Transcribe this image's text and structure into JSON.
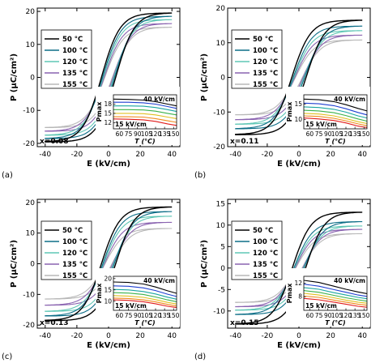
{
  "figure": {
    "description_free": true
  },
  "chart_data": [
    {
      "type": "line",
      "panel_label": "(a)",
      "composition": "x=0.08",
      "xlabel": "E (kV/cm)",
      "ylabel": "P (μC/cm²)",
      "xlim": [
        -45,
        45
      ],
      "ylim": [
        -21,
        21
      ],
      "xticks": [
        -40,
        -20,
        0,
        20,
        40
      ],
      "yticks": [
        -20,
        -10,
        0,
        10,
        20
      ],
      "legend_position": "top-left",
      "series": [
        {
          "name": "50 °C",
          "color": "#000000",
          "values": {
            "Pmax": 19.5,
            "Pr": 9.0,
            "Ec": 4.5
          }
        },
        {
          "name": "100 °C",
          "color": "#0d6e87",
          "values": {
            "Pmax": 18.5,
            "Pr": 5.8,
            "Ec": 3.8
          }
        },
        {
          "name": "120 °C",
          "color": "#5fc7b5",
          "values": {
            "Pmax": 17.5,
            "Pr": 4.6,
            "Ec": 3.3
          }
        },
        {
          "name": "135 °C",
          "color": "#8a63b0",
          "values": {
            "Pmax": 16.3,
            "Pr": 3.5,
            "Ec": 2.8
          }
        },
        {
          "name": "155 °C",
          "color": "#b8b8b8",
          "values": {
            "Pmax": 15.2,
            "Pr": 2.7,
            "Ec": 2.4
          }
        }
      ],
      "inset": {
        "type": "line",
        "xlabel": "T (°C)",
        "ylabel": "Pmax",
        "xlim": [
          50,
          155
        ],
        "ylim": [
          10,
          21
        ],
        "xticks": [
          60,
          75,
          90,
          105,
          120,
          135,
          150
        ],
        "yticks": [
          12,
          15,
          18
        ],
        "top_annotation": "40 kV/cm",
        "bottom_annotation": "15 kV/cm",
        "x": [
          50,
          75,
          100,
          120,
          140,
          155
        ],
        "curves": [
          {
            "color": "#000000",
            "values": [
              19.6,
              19.5,
              19.3,
              18.8,
              18.0,
              17.4
            ]
          },
          {
            "color": "#1f3fd0",
            "values": [
              18.6,
              18.6,
              18.4,
              18.0,
              17.2,
              16.6
            ]
          },
          {
            "color": "#1aa6a0",
            "values": [
              17.4,
              17.4,
              17.3,
              16.9,
              16.2,
              15.6
            ]
          },
          {
            "color": "#3bb24a",
            "values": [
              16.2,
              16.2,
              16.1,
              15.7,
              15.0,
              14.5
            ]
          },
          {
            "color": "#e0c020",
            "values": [
              15.0,
              15.0,
              14.9,
              14.5,
              13.8,
              13.3
            ]
          },
          {
            "color": "#f08a1c",
            "values": [
              13.9,
              13.9,
              13.8,
              13.3,
              12.6,
              12.1
            ]
          },
          {
            "color": "#e01b1b",
            "values": [
              13.2,
              13.1,
              12.9,
              12.4,
              11.6,
              11.1
            ]
          }
        ]
      }
    },
    {
      "type": "line",
      "panel_label": "(b)",
      "composition": "x=0.11",
      "xlabel": "E (kV/cm)",
      "ylabel": "P (μC/cm²)",
      "xlim": [
        -45,
        45
      ],
      "ylim": [
        -20,
        20
      ],
      "xticks": [
        -40,
        -20,
        0,
        20,
        40
      ],
      "yticks": [
        -20,
        -10,
        0,
        10,
        20
      ],
      "legend_position": "top-left",
      "series": [
        {
          "name": "50 °C",
          "color": "#000000",
          "values": {
            "Pmax": 16.5,
            "Pr": 6.5,
            "Ec": 4.5
          }
        },
        {
          "name": "100 °C",
          "color": "#0d6e87",
          "values": {
            "Pmax": 14.8,
            "Pr": 4.0,
            "Ec": 3.6
          }
        },
        {
          "name": "120 °C",
          "color": "#5fc7b5",
          "values": {
            "Pmax": 13.5,
            "Pr": 3.2,
            "Ec": 3.1
          }
        },
        {
          "name": "135 °C",
          "color": "#8a63b0",
          "values": {
            "Pmax": 12.2,
            "Pr": 2.5,
            "Ec": 2.6
          }
        },
        {
          "name": "155 °C",
          "color": "#b8b8b8",
          "values": {
            "Pmax": 10.8,
            "Pr": 1.8,
            "Ec": 2.2
          }
        }
      ],
      "inset": {
        "type": "line",
        "xlabel": "T (°C)",
        "ylabel": "Pmax",
        "xlim": [
          50,
          155
        ],
        "ylim": [
          7,
          18
        ],
        "xticks": [
          60,
          75,
          90,
          105,
          120,
          135,
          150
        ],
        "yticks": [
          10,
          15
        ],
        "top_annotation": "40 kV/cm",
        "bottom_annotation": "15 kV/cm",
        "x": [
          50,
          75,
          100,
          120,
          140,
          155
        ],
        "curves": [
          {
            "color": "#000000",
            "values": [
              16.6,
              16.4,
              15.8,
              14.8,
              13.6,
              12.8
            ]
          },
          {
            "color": "#1f3fd0",
            "values": [
              15.3,
              15.1,
              14.5,
              13.5,
              12.3,
              11.5
            ]
          },
          {
            "color": "#1aa6a0",
            "values": [
              14.1,
              13.9,
              13.3,
              12.4,
              11.2,
              10.5
            ]
          },
          {
            "color": "#3bb24a",
            "values": [
              13.0,
              12.8,
              12.2,
              11.3,
              10.2,
              9.5
            ]
          },
          {
            "color": "#e0c020",
            "values": [
              12.0,
              11.8,
              11.2,
              10.3,
              9.3,
              8.7
            ]
          },
          {
            "color": "#f08a1c",
            "values": [
              11.2,
              11.0,
              10.4,
              9.6,
              8.6,
              8.0
            ]
          },
          {
            "color": "#e01b1b",
            "values": [
              10.5,
              10.2,
              9.7,
              8.9,
              7.9,
              7.4
            ]
          }
        ]
      }
    },
    {
      "type": "line",
      "panel_label": "(c)",
      "composition": "x=0.13",
      "xlabel": "E (kV/cm)",
      "ylabel": "P (μC/cm²)",
      "xlim": [
        -45,
        45
      ],
      "ylim": [
        -21,
        21
      ],
      "xticks": [
        -40,
        -20,
        0,
        20,
        40
      ],
      "yticks": [
        -20,
        -10,
        0,
        10,
        20
      ],
      "legend_position": "top-left",
      "series": [
        {
          "name": "50 °C",
          "color": "#000000",
          "values": {
            "Pmax": 18.5,
            "Pr": 7.5,
            "Ec": 4.5
          }
        },
        {
          "name": "100 °C",
          "color": "#0d6e87",
          "values": {
            "Pmax": 17.0,
            "Pr": 4.8,
            "Ec": 3.6
          }
        },
        {
          "name": "120 °C",
          "color": "#5fc7b5",
          "values": {
            "Pmax": 15.5,
            "Pr": 3.8,
            "Ec": 3.1
          }
        },
        {
          "name": "135 °C",
          "color": "#8a63b0",
          "values": {
            "Pmax": 13.5,
            "Pr": 2.8,
            "Ec": 2.6
          }
        },
        {
          "name": "155 °C",
          "color": "#b8b8b8",
          "values": {
            "Pmax": 11.5,
            "Pr": 2.0,
            "Ec": 2.2
          }
        }
      ],
      "inset": {
        "type": "line",
        "xlabel": "T (°C)",
        "ylabel": "Pmax",
        "xlim": [
          50,
          155
        ],
        "ylim": [
          6,
          21
        ],
        "xticks": [
          60,
          75,
          90,
          105,
          120,
          135,
          150
        ],
        "yticks": [
          10,
          15,
          20
        ],
        "top_annotation": "40 kV/cm",
        "bottom_annotation": "15 kV/cm",
        "x": [
          50,
          75,
          100,
          120,
          140,
          155
        ],
        "curves": [
          {
            "color": "#000000",
            "values": [
              18.5,
              18.3,
              17.6,
              16.3,
              14.6,
              13.5
            ]
          },
          {
            "color": "#1f3fd0",
            "values": [
              16.8,
              16.6,
              15.9,
              14.7,
              13.1,
              12.1
            ]
          },
          {
            "color": "#1aa6a0",
            "values": [
              15.2,
              15.0,
              14.3,
              13.2,
              11.8,
              10.9
            ]
          },
          {
            "color": "#3bb24a",
            "values": [
              13.8,
              13.6,
              13.0,
              11.9,
              10.6,
              9.8
            ]
          },
          {
            "color": "#e0c020",
            "values": [
              12.5,
              12.3,
              11.7,
              10.7,
              9.5,
              8.8
            ]
          },
          {
            "color": "#f08a1c",
            "values": [
              11.4,
              11.2,
              10.6,
              9.7,
              8.6,
              7.9
            ]
          },
          {
            "color": "#e01b1b",
            "values": [
              10.6,
              10.4,
              9.8,
              8.9,
              7.8,
              7.2
            ]
          }
        ]
      }
    },
    {
      "type": "line",
      "panel_label": "(d)",
      "composition": "x=0.15",
      "xlabel": "E (kV/cm)",
      "ylabel": "P (μC/cm²)",
      "xlim": [
        -45,
        45
      ],
      "ylim": [
        -14,
        16
      ],
      "xticks": [
        -40,
        -20,
        0,
        20,
        40
      ],
      "yticks": [
        -10,
        -5,
        0,
        5,
        10,
        15
      ],
      "legend_position": "top-left",
      "series": [
        {
          "name": "50 °C",
          "color": "#000000",
          "values": {
            "Pmax": 13.0,
            "Pr": 4.5,
            "Ec": 4.2
          }
        },
        {
          "name": "100 °C",
          "color": "#0d6e87",
          "values": {
            "Pmax": 10.8,
            "Pr": 2.5,
            "Ec": 3.2
          }
        },
        {
          "name": "120 °C",
          "color": "#5fc7b5",
          "values": {
            "Pmax": 9.8,
            "Pr": 2.0,
            "Ec": 2.8
          }
        },
        {
          "name": "135 °C",
          "color": "#8a63b0",
          "values": {
            "Pmax": 9.0,
            "Pr": 1.6,
            "Ec": 2.4
          }
        },
        {
          "name": "155 °C",
          "color": "#b8b8b8",
          "values": {
            "Pmax": 8.0,
            "Pr": 1.2,
            "Ec": 2.0
          }
        }
      ],
      "inset": {
        "type": "line",
        "xlabel": "T (°C)",
        "ylabel": "Pmax",
        "xlim": [
          50,
          155
        ],
        "ylim": [
          4,
          14
        ],
        "xticks": [
          60,
          75,
          90,
          105,
          120,
          135,
          150
        ],
        "yticks": [
          8,
          12
        ],
        "top_annotation": "40 kV/cm",
        "bottom_annotation": "15 kV/cm",
        "x": [
          50,
          75,
          100,
          120,
          140,
          155
        ],
        "curves": [
          {
            "color": "#000000",
            "values": [
              12.8,
              12.2,
              11.1,
              10.2,
              9.4,
              8.9
            ]
          },
          {
            "color": "#1f3fd0",
            "values": [
              11.7,
              11.1,
              10.1,
              9.3,
              8.5,
              8.1
            ]
          },
          {
            "color": "#1aa6a0",
            "values": [
              10.7,
              10.2,
              9.2,
              8.5,
              7.8,
              7.4
            ]
          },
          {
            "color": "#3bb24a",
            "values": [
              9.8,
              9.3,
              8.4,
              7.7,
              7.1,
              6.7
            ]
          },
          {
            "color": "#e0c020",
            "values": [
              9.0,
              8.5,
              7.7,
              7.0,
              6.4,
              6.1
            ]
          },
          {
            "color": "#f08a1c",
            "values": [
              8.2,
              7.8,
              7.0,
              6.4,
              5.8,
              5.5
            ]
          },
          {
            "color": "#e01b1b",
            "values": [
              7.5,
              7.1,
              6.4,
              5.8,
              5.2,
              4.9
            ]
          }
        ]
      }
    }
  ]
}
